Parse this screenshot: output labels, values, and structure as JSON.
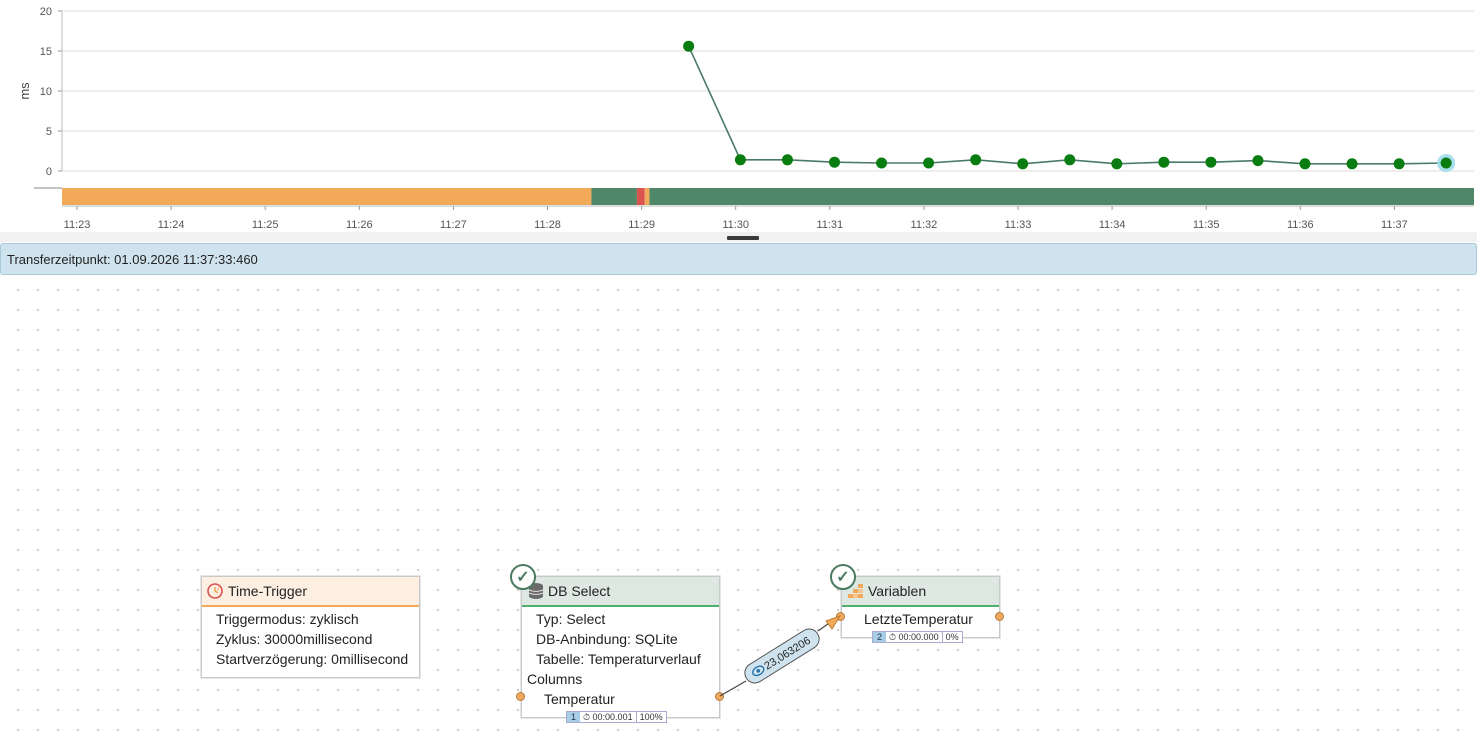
{
  "chart_data": {
    "type": "line",
    "ylabel": "ms",
    "ylim": [
      0,
      20
    ],
    "yticks": [
      0,
      5,
      10,
      15,
      20
    ],
    "xticks": [
      "11:23",
      "11:24",
      "11:25",
      "11:26",
      "11:27",
      "11:28",
      "11:29",
      "11:30",
      "11:31",
      "11:32",
      "11:33",
      "11:34",
      "11:35",
      "11:36",
      "11:37"
    ],
    "series": [
      {
        "color": "#4a7a68",
        "point_color": "#0a7d12",
        "x": [
          "11:29:30",
          "11:30:03",
          "11:30:33",
          "11:31:03",
          "11:31:33",
          "11:32:03",
          "11:32:33",
          "11:33:03",
          "11:33:33",
          "11:34:03",
          "11:34:33",
          "11:35:03",
          "11:35:33",
          "11:36:03",
          "11:36:33",
          "11:37:03",
          "11:37:33"
        ],
        "values": [
          15.6,
          1.4,
          1.4,
          1.1,
          1.0,
          1.0,
          1.4,
          0.9,
          1.4,
          0.9,
          1.1,
          1.1,
          1.3,
          0.9,
          0.9,
          0.9,
          1.0
        ]
      }
    ],
    "selected_point": "11:37:33",
    "status_strip": [
      {
        "from": "11:22:50",
        "to": "11:28:28",
        "color": "#f2a95a"
      },
      {
        "from": "11:28:28",
        "to": "11:28:57",
        "color": "#4f8868"
      },
      {
        "from": "11:28:57",
        "to": "11:29:02",
        "color": "#d9534f"
      },
      {
        "from": "11:29:02",
        "to": "11:29:05",
        "color": "#f2a95a"
      },
      {
        "from": "11:29:05",
        "to": "11:38:05",
        "color": "#4f8868"
      }
    ]
  },
  "transfer": {
    "label": "Transferzeitpunkt: 01.09.2026 11:37:33:460"
  },
  "nodes": {
    "time_trigger": {
      "title": "Time-Trigger",
      "icon": "clock-icon",
      "header_color": "#fdf0e3",
      "accent": "#f2a95a",
      "rows": [
        "Triggermodus: zyklisch",
        "Zyklus: 30000millisecond",
        "Startverzögerung: 0millisecond"
      ]
    },
    "db_select": {
      "title": "DB Select",
      "icon": "database-icon",
      "header_color": "#dde8e2",
      "accent": "#4caf6d",
      "rows": [
        "Typ: Select",
        "DB-Anbindung: SQLite",
        "Tabelle: Temperaturverlauf"
      ],
      "section": "Columns",
      "column": "Temperatur",
      "status": {
        "count": "1",
        "time": "⏱ 00:00.001",
        "pct": "100%"
      }
    },
    "variablen": {
      "title": "Variablen",
      "icon": "grid-icon",
      "header_color": "#dde8e2",
      "accent": "#4caf6d",
      "rows": [
        "LetzteTemperatur"
      ],
      "status": {
        "count": "2",
        "time": "⏱ 00:00.000",
        "pct": "0%"
      }
    }
  },
  "edge": {
    "label": "23,063206",
    "icon": "eye-icon"
  }
}
